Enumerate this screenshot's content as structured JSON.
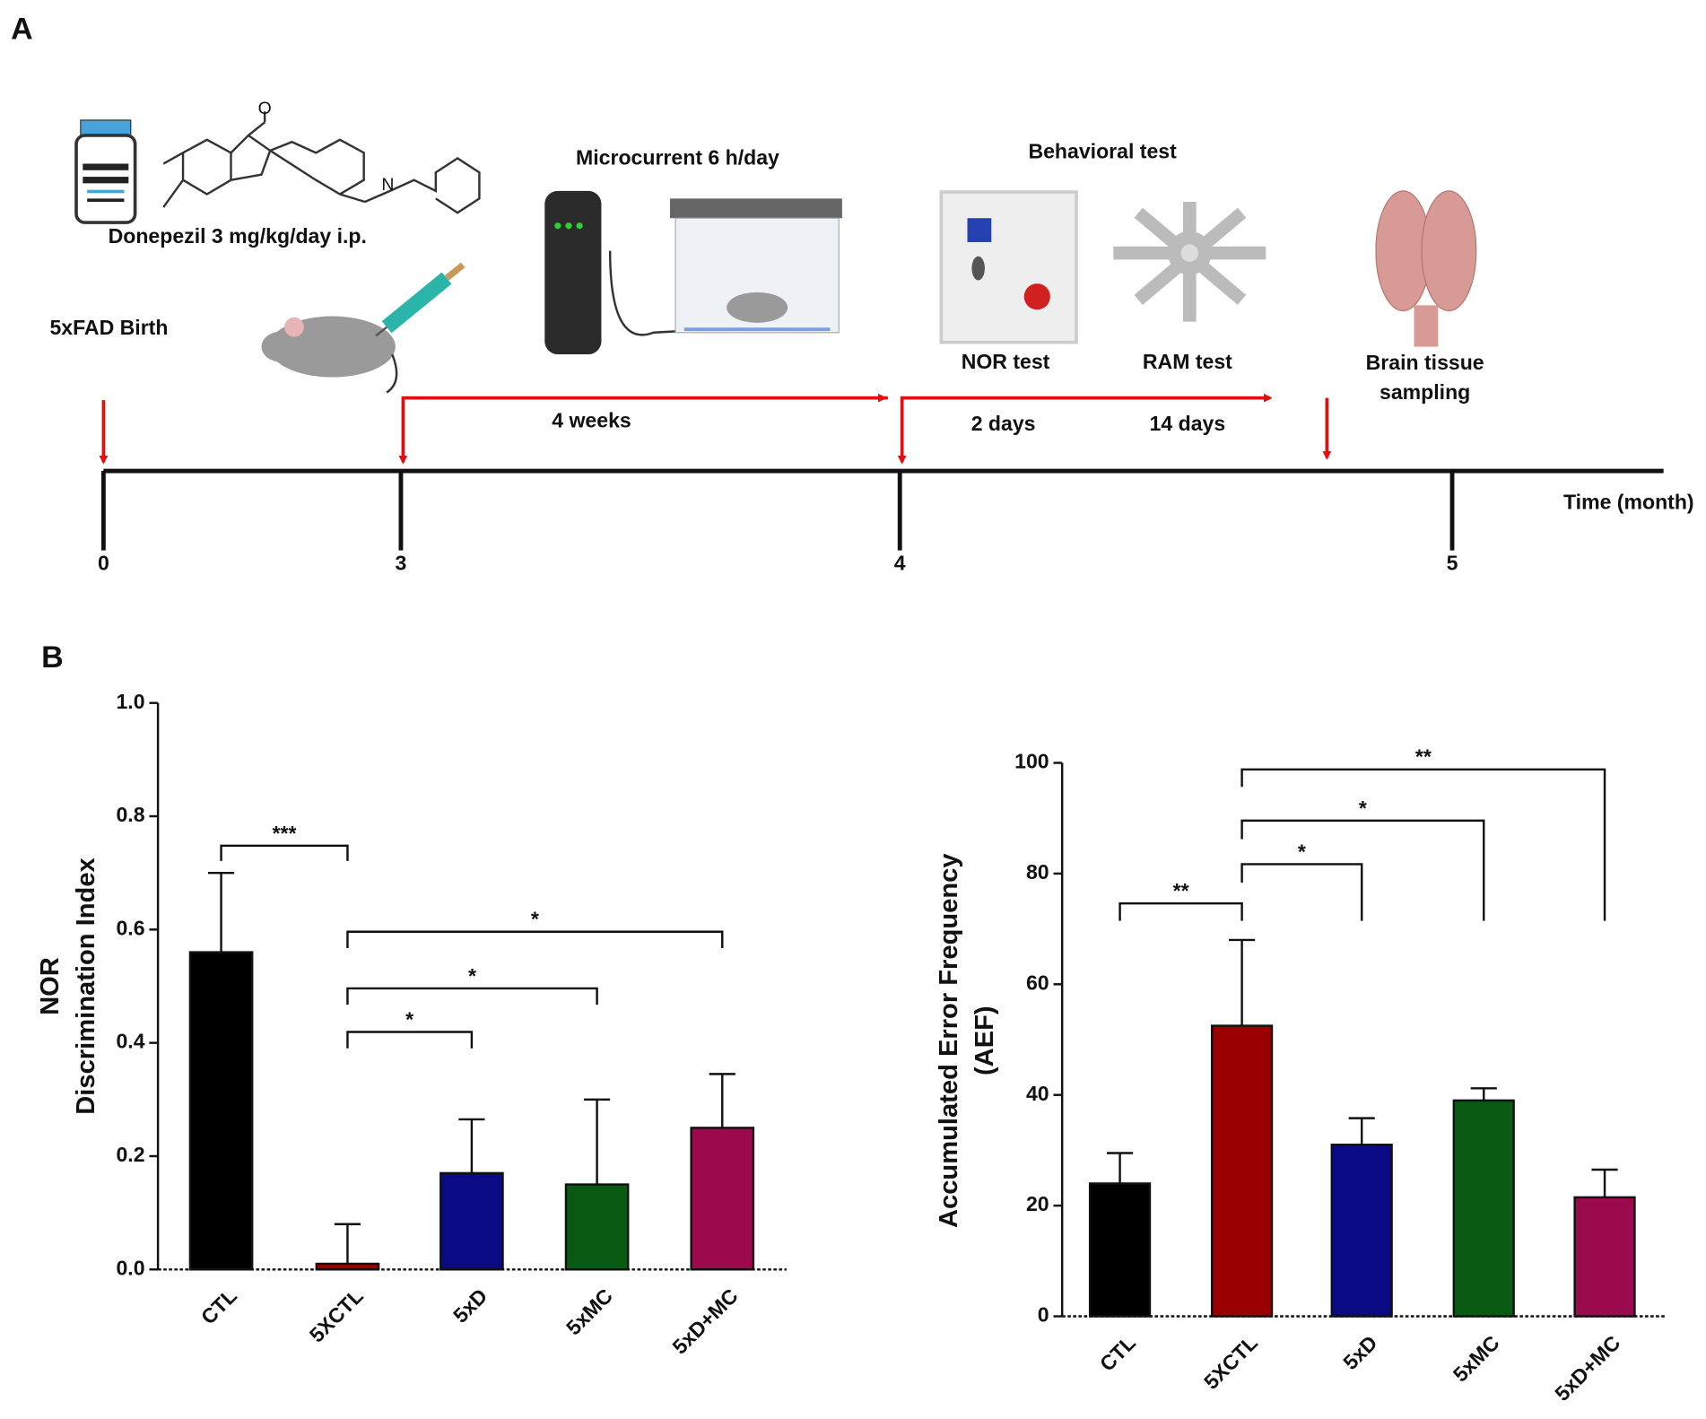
{
  "panel_labels": [
    "A",
    "B"
  ],
  "timeline": {
    "axis_label": "Time (month)",
    "ticks": [
      0,
      3,
      4,
      5
    ],
    "labels": {
      "birth": "5xFAD Birth",
      "drug": "Donepezil 3 mg/kg/day i.p.",
      "microcurrent": "Microcurrent 6 h/day",
      "behavioral": "Behavioral test",
      "nor": "NOR test",
      "ram": "RAM test",
      "brain": [
        "Brain tissue",
        "sampling"
      ],
      "period_1": "4 weeks",
      "period_2": "2 days",
      "period_3": "14 days"
    },
    "atoms": [
      "O",
      "N"
    ]
  },
  "chart_data": [
    {
      "type": "bar",
      "y_label": [
        "NOR",
        "Discrimination Index"
      ],
      "categories": [
        "CTL",
        "5XCTL",
        "5xD",
        "5xMC",
        "5xD+MC"
      ],
      "values": [
        0.56,
        0.01,
        0.17,
        0.15,
        0.25
      ],
      "errors": [
        0.14,
        0.07,
        0.095,
        0.15,
        0.095
      ],
      "colors": [
        "#000000",
        "#9b0000",
        "#0a0a85",
        "#0a5a14",
        "#9a0a4c"
      ],
      "ylim": [
        0,
        1
      ],
      "yticks": [
        {
          "value": 0,
          "label": "0.0"
        },
        0.2,
        0.4,
        0.6,
        0.8,
        {
          "value": 1,
          "label": "1.0"
        }
      ],
      "significance": [
        {
          "from": "CTL",
          "to": "5XCTL",
          "label": "***"
        },
        {
          "from": "5XCTL",
          "to": "5xD",
          "label": "*"
        },
        {
          "from": "5XCTL",
          "to": "5xMC",
          "label": "*"
        },
        {
          "from": "5XCTL",
          "to": "5xD+MC",
          "label": "*"
        }
      ]
    },
    {
      "type": "bar",
      "y_label": [
        "Accumulated Error Frequency",
        "(AEF)"
      ],
      "categories": [
        "CTL",
        "5XCTL",
        "5xD",
        "5xMC",
        "5xD+MC"
      ],
      "values": [
        24,
        52.5,
        31,
        39,
        21.5
      ],
      "errors": [
        5.5,
        15.5,
        4.8,
        2.2,
        5
      ],
      "colors": [
        "#000000",
        "#9b0000",
        "#0a0a85",
        "#0a5a14",
        "#9a0a4c"
      ],
      "ylim": [
        0,
        100
      ],
      "yticks": [
        0,
        20,
        40,
        60,
        80,
        100
      ],
      "significance": [
        {
          "from": "CTL",
          "to": "5XCTL",
          "label": "**"
        },
        {
          "from": "5XCTL",
          "to": "5xD",
          "label": "*"
        },
        {
          "from": "5XCTL",
          "to": "5xMC",
          "label": "*"
        },
        {
          "from": "5XCTL",
          "to": "5xD+MC",
          "label": "**"
        }
      ]
    }
  ]
}
